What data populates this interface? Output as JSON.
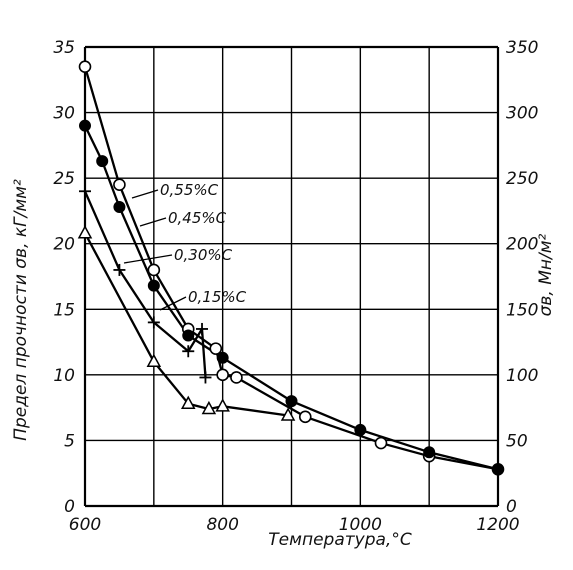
{
  "chart_data": {
    "type": "line",
    "xlabel": "Температура,°С",
    "ylabel_left": "Предел прочности σв, кГ/мм²",
    "ylabel_right": "σв, Мн/м²",
    "xlim": [
      600,
      1200
    ],
    "ylim_left": [
      0,
      35
    ],
    "ylim_right": [
      0,
      350
    ],
    "x_ticks": [
      "600",
      "800",
      "1000",
      "1200"
    ],
    "y_ticks_left": [
      "0",
      "5",
      "10",
      "15",
      "20",
      "25",
      "30",
      "35"
    ],
    "y_ticks_right": [
      "0",
      "50",
      "100",
      "150",
      "200",
      "250",
      "300",
      "350"
    ],
    "grid": true,
    "series": [
      {
        "name": "0,55%C",
        "marker": "open-circle",
        "points": [
          [
            600,
            33.5
          ],
          [
            650,
            24.5
          ],
          [
            700,
            18
          ],
          [
            750,
            13.5
          ],
          [
            790,
            12
          ],
          [
            800,
            10
          ],
          [
            820,
            9.8
          ],
          [
            920,
            6.8
          ],
          [
            1030,
            4.8
          ],
          [
            1100,
            3.8
          ],
          [
            1200,
            2.8
          ]
        ]
      },
      {
        "name": "0,45%C",
        "marker": "filled-circle",
        "points": [
          [
            600,
            29
          ],
          [
            625,
            26.3
          ],
          [
            650,
            22.8
          ],
          [
            700,
            16.8
          ],
          [
            750,
            13
          ],
          [
            800,
            11.3
          ],
          [
            900,
            8
          ],
          [
            1000,
            5.8
          ],
          [
            1100,
            4.1
          ],
          [
            1200,
            2.8
          ]
        ]
      },
      {
        "name": "0,30%C",
        "marker": "cross",
        "points": [
          [
            600,
            24
          ],
          [
            650,
            18
          ],
          [
            700,
            14
          ],
          [
            750,
            11.8
          ],
          [
            770,
            13.5
          ],
          [
            775,
            9.8
          ]
        ]
      },
      {
        "name": "0,15%C",
        "marker": "open-triangle",
        "points": [
          [
            600,
            20.8
          ],
          [
            700,
            11
          ],
          [
            750,
            7.8
          ],
          [
            780,
            7.4
          ],
          [
            800,
            7.6
          ],
          [
            895,
            6.9
          ]
        ]
      }
    ]
  }
}
